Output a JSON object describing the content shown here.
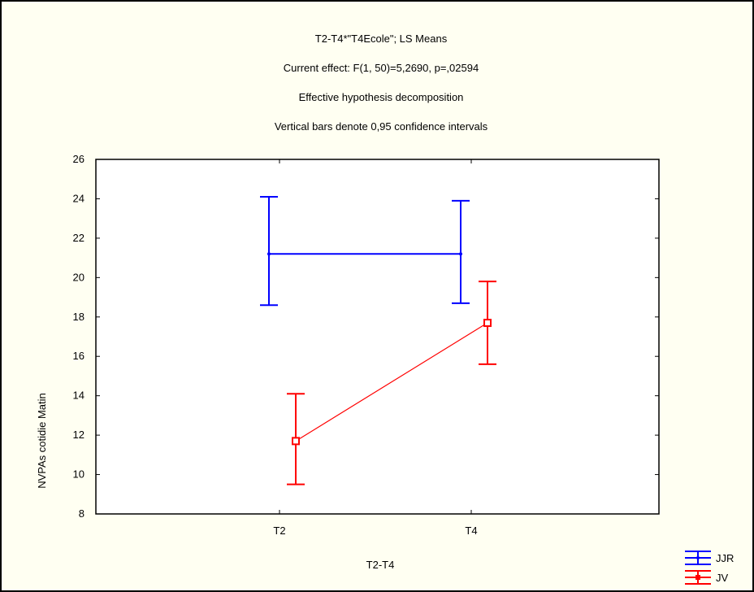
{
  "chart_data": {
    "type": "line",
    "title": "T2-T4*\"T4Ecole\"; LS Means",
    "subtitle": [
      "Current effect: F(1, 50)=5,2690, p=,02594",
      "Effective hypothesis decomposition",
      "Vertical bars denote 0,95 confidence intervals"
    ],
    "xlabel": "T2-T4",
    "ylabel": "NVPAs cotidie Matin",
    "categories": [
      "T2",
      "T4"
    ],
    "ylim": [
      8,
      26
    ],
    "yticks": [
      "26",
      "24",
      "22",
      "20",
      "18",
      "16",
      "14",
      "12",
      "10",
      "8"
    ],
    "grid": false,
    "legend_position": "bottom-right",
    "series": [
      {
        "name": "JJR",
        "color": "#0000ff",
        "values": [
          21.2,
          21.2
        ],
        "lower": [
          18.6,
          18.7
        ],
        "upper": [
          24.1,
          23.9
        ],
        "marker": "dot"
      },
      {
        "name": "JV",
        "color": "#ff0000",
        "values": [
          11.7,
          17.7
        ],
        "lower": [
          9.5,
          15.6
        ],
        "upper": [
          14.1,
          19.8
        ],
        "marker": "square"
      }
    ]
  }
}
